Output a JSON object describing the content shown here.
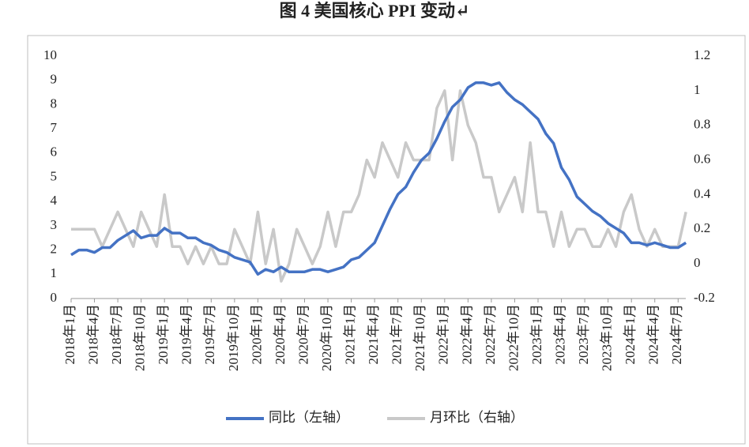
{
  "chart_data": {
    "type": "line",
    "title": "图 4  美国核心 PPI 变动↵",
    "categories": [
      "2018年1月",
      null,
      null,
      "2018年4月",
      null,
      null,
      "2018年7月",
      null,
      null,
      "2018年10月",
      null,
      null,
      "2019年1月",
      null,
      null,
      "2019年4月",
      null,
      null,
      "2019年7月",
      null,
      null,
      "2019年10月",
      null,
      null,
      "2020年1月",
      null,
      null,
      "2020年4月",
      null,
      null,
      "2020年7月",
      null,
      null,
      "2020年10月",
      null,
      null,
      "2021年1月",
      null,
      null,
      "2021年4月",
      null,
      null,
      "2021年7月",
      null,
      null,
      "2021年10月",
      null,
      null,
      "2022年1月",
      null,
      null,
      "2022年4月",
      null,
      null,
      "2022年7月",
      null,
      null,
      "2022年10月",
      null,
      null,
      "2023年1月",
      null,
      null,
      "2023年4月",
      null,
      null,
      "2023年7月",
      null,
      null,
      "2023年10月",
      null,
      null,
      "2024年1月",
      null,
      null,
      "2024年4月",
      null,
      null,
      "2024年7月",
      null
    ],
    "series": [
      {
        "name": "同比（左轴）",
        "color": "#4472c4",
        "axis": "y",
        "values": [
          1.8,
          2.0,
          2.0,
          1.9,
          2.1,
          2.1,
          2.4,
          2.6,
          2.8,
          2.5,
          2.6,
          2.6,
          2.9,
          2.7,
          2.7,
          2.5,
          2.5,
          2.3,
          2.2,
          2.0,
          1.9,
          1.7,
          1.6,
          1.5,
          1.0,
          1.2,
          1.1,
          1.3,
          1.1,
          1.1,
          1.1,
          1.2,
          1.2,
          1.1,
          1.2,
          1.3,
          1.6,
          1.7,
          2.0,
          2.3,
          3.0,
          3.7,
          4.3,
          4.6,
          5.2,
          5.7,
          6.0,
          6.6,
          7.3,
          7.9,
          8.2,
          8.7,
          8.9,
          8.9,
          8.8,
          8.9,
          8.5,
          8.2,
          8.0,
          7.7,
          7.4,
          6.8,
          6.4,
          5.4,
          4.9,
          4.2,
          3.9,
          3.6,
          3.4,
          3.1,
          2.9,
          2.7,
          2.3,
          2.3,
          2.2,
          2.3,
          2.2,
          2.1,
          2.1,
          2.3
        ]
      },
      {
        "name": "月环比（右轴）",
        "color": "#c9c9c9",
        "axis": "y2",
        "values": [
          0.2,
          0.2,
          0.2,
          0.2,
          0.1,
          0.2,
          0.3,
          0.2,
          0.1,
          0.3,
          0.2,
          0.1,
          0.4,
          0.1,
          0.1,
          0.0,
          0.1,
          0.0,
          0.1,
          0.0,
          0.0,
          0.2,
          0.1,
          0.0,
          0.3,
          0.0,
          0.2,
          -0.1,
          0.0,
          0.2,
          0.1,
          0.0,
          0.1,
          0.3,
          0.1,
          0.3,
          0.3,
          0.4,
          0.6,
          0.5,
          0.7,
          0.6,
          0.5,
          0.7,
          0.6,
          0.6,
          0.6,
          0.9,
          1.0,
          0.6,
          1.0,
          0.8,
          0.7,
          0.5,
          0.5,
          0.3,
          0.4,
          0.5,
          0.3,
          0.7,
          0.3,
          0.3,
          0.1,
          0.3,
          0.1,
          0.2,
          0.2,
          0.1,
          0.1,
          0.2,
          0.1,
          0.3,
          0.4,
          0.2,
          0.1,
          0.2,
          0.1,
          0.1,
          0.1,
          0.3
        ]
      }
    ],
    "ylim": [
      0,
      10
    ],
    "yticks": [
      0,
      1,
      2,
      3,
      4,
      5,
      6,
      7,
      8,
      9,
      10
    ],
    "y2lim": [
      -0.2,
      1.2
    ],
    "y2ticks": [
      -0.2,
      0,
      0.2,
      0.4,
      0.6,
      0.8,
      1,
      1.2
    ],
    "legend": "bottom"
  }
}
